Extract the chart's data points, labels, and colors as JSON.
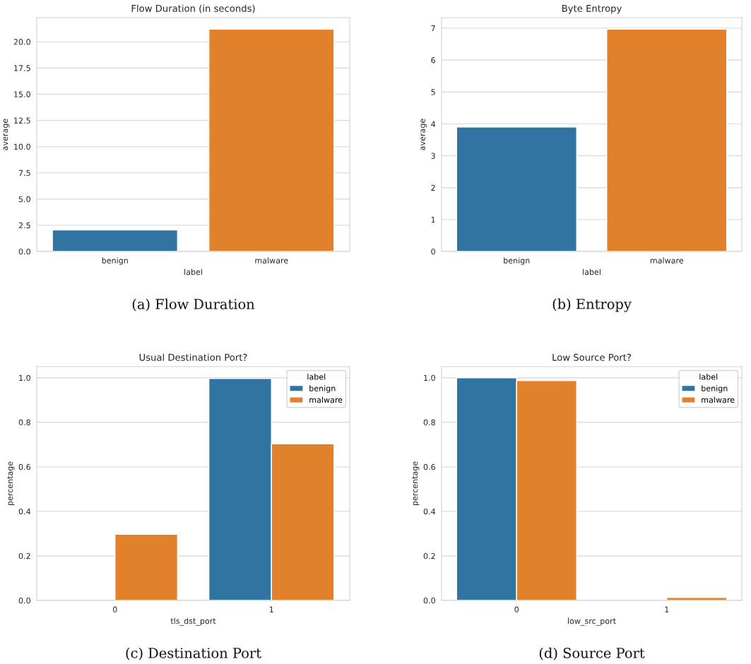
{
  "chart_data": [
    {
      "type": "bar",
      "title": "Flow Duration (in seconds)",
      "xlabel": "label",
      "ylabel": "average",
      "categories": [
        "benign",
        "malware"
      ],
      "values": [
        2.05,
        21.2
      ],
      "colors": [
        "#3274a1",
        "#e1812c"
      ],
      "ylim": [
        0,
        22.3
      ],
      "yticks": [
        {
          "value": 0,
          "label": "0.0"
        },
        {
          "value": 2.5,
          "label": "2.5"
        },
        {
          "value": 5,
          "label": "5.0"
        },
        {
          "value": 7.5,
          "label": "7.5"
        },
        {
          "value": 10,
          "label": "10.0"
        },
        {
          "value": 12.5,
          "label": "12.5"
        },
        {
          "value": 15,
          "label": "15.0"
        },
        {
          "value": 17.5,
          "label": "17.5"
        },
        {
          "value": 20,
          "label": "20.0"
        }
      ],
      "grid": "y",
      "annotations": [
        "(a) Flow Duration"
      ]
    },
    {
      "type": "bar",
      "title": "Byte Entropy",
      "xlabel": "label",
      "ylabel": "average",
      "categories": [
        "benign",
        "malware"
      ],
      "values": [
        3.9,
        6.97
      ],
      "colors": [
        "#3274a1",
        "#e1812c"
      ],
      "ylim": [
        0,
        7.33
      ],
      "yticks": [
        0,
        1,
        2,
        3,
        4,
        5,
        6,
        7
      ],
      "grid": "y",
      "annotations": [
        "(b) Entropy"
      ]
    },
    {
      "type": "bar",
      "title": "Usual Destination Port?",
      "xlabel": "tls_dst_port",
      "ylabel": "percentage",
      "categories": [
        "0",
        "1"
      ],
      "series": [
        {
          "name": "benign",
          "color": "#3274a1",
          "values": [
            null,
            0.997
          ]
        },
        {
          "name": "malware",
          "color": "#e1812c",
          "values": [
            0.297,
            0.703
          ]
        }
      ],
      "legend_title": "label",
      "legend": "top right",
      "ylim": [
        0,
        1.05
      ],
      "yticks": [
        {
          "value": 0,
          "label": "0.0"
        },
        {
          "value": 0.2,
          "label": "0.2"
        },
        {
          "value": 0.4,
          "label": "0.4"
        },
        {
          "value": 0.6,
          "label": "0.6"
        },
        {
          "value": 0.8,
          "label": "0.8"
        },
        {
          "value": 1,
          "label": "1.0"
        }
      ],
      "grid": "y",
      "annotations": [
        "(c) Destination Port"
      ]
    },
    {
      "type": "bar",
      "title": "Low Source Port?",
      "xlabel": "low_src_port",
      "ylabel": "percentage",
      "categories": [
        "0",
        "1"
      ],
      "series": [
        {
          "name": "benign",
          "color": "#3274a1",
          "values": [
            1.0,
            null
          ]
        },
        {
          "name": "malware",
          "color": "#e1812c",
          "values": [
            0.987,
            0.013
          ]
        }
      ],
      "legend_title": "label",
      "legend": "top right",
      "ylim": [
        0,
        1.05
      ],
      "yticks": [
        {
          "value": 0,
          "label": "0.0"
        },
        {
          "value": 0.2,
          "label": "0.2"
        },
        {
          "value": 0.4,
          "label": "0.4"
        },
        {
          "value": 0.6,
          "label": "0.6"
        },
        {
          "value": 0.8,
          "label": "0.8"
        },
        {
          "value": 1,
          "label": "1.0"
        }
      ],
      "grid": "y",
      "annotations": [
        "(d) Source Port"
      ]
    }
  ]
}
